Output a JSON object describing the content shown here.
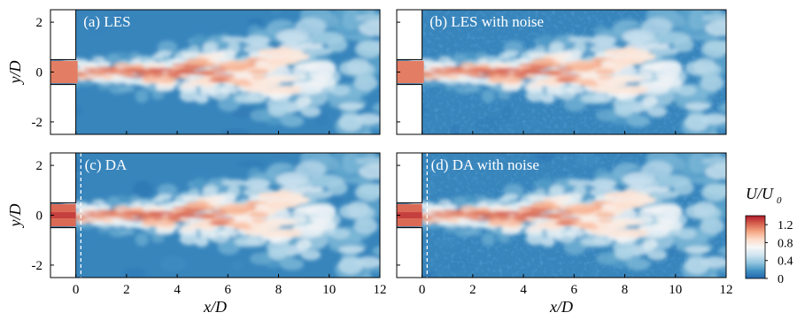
{
  "chart_data": [
    {
      "type": "heatmap",
      "panel_label": "(a) LES",
      "xlabel": "",
      "ylabel": "y/D",
      "xlim": [
        -1,
        12
      ],
      "ylim": [
        -2.5,
        2.5
      ],
      "x_ticks": [],
      "y_ticks": [
        "-2",
        "0",
        "2"
      ],
      "colorbar_show": false,
      "jet": {
        "exit_half_width": 0.5,
        "core_end": 5.5,
        "noise": false,
        "da_line": false
      }
    },
    {
      "type": "heatmap",
      "panel_label": "(b) LES with noise",
      "xlabel": "",
      "ylabel": "",
      "xlim": [
        -1,
        12
      ],
      "ylim": [
        -2.5,
        2.5
      ],
      "x_ticks": [],
      "y_ticks": [],
      "colorbar_show": false,
      "jet": {
        "exit_half_width": 0.5,
        "core_end": 5.5,
        "noise": true,
        "da_line": false
      }
    },
    {
      "type": "heatmap",
      "panel_label": "(c) DA",
      "xlabel": "x/D",
      "ylabel": "y/D",
      "xlim": [
        -1,
        12
      ],
      "ylim": [
        -2.5,
        2.5
      ],
      "x_ticks": [
        "0",
        "2",
        "4",
        "6",
        "8",
        "10",
        "12"
      ],
      "y_ticks": [
        "-2",
        "0",
        "2"
      ],
      "colorbar_show": false,
      "jet": {
        "exit_half_width": 0.5,
        "core_end": 5.5,
        "noise": false,
        "da_line": true,
        "da_line_x": 0.2
      }
    },
    {
      "type": "heatmap",
      "panel_label": "(d) DA with noise",
      "xlabel": "x/D",
      "ylabel": "",
      "xlim": [
        -1,
        12
      ],
      "ylim": [
        -2.5,
        2.5
      ],
      "x_ticks": [
        "0",
        "2",
        "4",
        "6",
        "8",
        "10",
        "12"
      ],
      "y_ticks": [],
      "colorbar_show": true,
      "jet": {
        "exit_half_width": 0.5,
        "core_end": 5.5,
        "noise": true,
        "da_line": true,
        "da_line_x": 0.2
      }
    }
  ],
  "colorbar": {
    "title": "U/U",
    "title_sub": "0",
    "range": [
      0,
      1.4
    ],
    "ticks": [
      "1.2",
      "0.8",
      "0.4",
      "0"
    ],
    "tick_values": [
      1.2,
      0.8,
      0.4,
      0
    ],
    "colors": [
      "#2166ac",
      "#4393c3",
      "#92c5de",
      "#d1e5f0",
      "#f7f7f7",
      "#fddbc7",
      "#f4a582",
      "#d6604d",
      "#b2182b"
    ]
  }
}
